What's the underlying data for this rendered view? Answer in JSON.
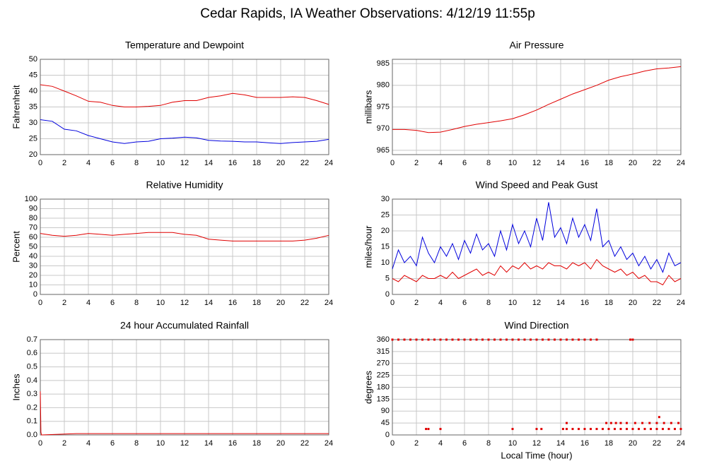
{
  "title": "Cedar Rapids, IA Weather Observations: 4/12/19 11:55p",
  "chart_data": [
    {
      "type": "line",
      "title": "Temperature and Dewpoint",
      "ylabel": "Fahrenheit",
      "x": [
        0,
        1,
        2,
        3,
        4,
        5,
        6,
        7,
        8,
        9,
        10,
        11,
        12,
        13,
        14,
        15,
        16,
        17,
        18,
        19,
        20,
        21,
        22,
        23,
        24
      ],
      "xlim": [
        0,
        24
      ],
      "xticks": [
        0,
        2,
        4,
        6,
        8,
        10,
        12,
        14,
        16,
        18,
        20,
        22,
        24
      ],
      "ylim": [
        20,
        50
      ],
      "yticks": [
        20,
        25,
        30,
        35,
        40,
        45,
        50
      ],
      "grid": true,
      "series": [
        {
          "color": "#e00000",
          "values": [
            42,
            41.5,
            40,
            38.5,
            36.8,
            36.5,
            35.5,
            35,
            35,
            35.2,
            35.5,
            36.5,
            37,
            37,
            38,
            38.5,
            39.3,
            38.8,
            38,
            38,
            38,
            38.2,
            38,
            37,
            35.8
          ]
        },
        {
          "color": "#0000dd",
          "values": [
            31,
            30.5,
            28,
            27.5,
            26,
            25,
            24,
            23.5,
            24,
            24.2,
            25,
            25.2,
            25.5,
            25.3,
            24.5,
            24.3,
            24.2,
            24,
            24,
            23.7,
            23.5,
            23.8,
            24,
            24.2,
            24.8
          ]
        }
      ]
    },
    {
      "type": "line",
      "title": "Air Pressure",
      "ylabel": "millibars",
      "x": [
        0,
        1,
        2,
        3,
        4,
        5,
        6,
        7,
        8,
        9,
        10,
        11,
        12,
        13,
        14,
        15,
        16,
        17,
        18,
        19,
        20,
        21,
        22,
        23,
        24
      ],
      "xlim": [
        0,
        24
      ],
      "xticks": [
        0,
        2,
        4,
        6,
        8,
        10,
        12,
        14,
        16,
        18,
        20,
        22,
        24
      ],
      "ylim": [
        964,
        986
      ],
      "yticks": [
        965,
        970,
        975,
        980,
        985
      ],
      "grid": true,
      "series": [
        {
          "color": "#e00000",
          "values": [
            969.8,
            969.8,
            969.6,
            969.1,
            969.2,
            969.8,
            970.5,
            971,
            971.4,
            971.8,
            972.3,
            973.2,
            974.3,
            975.6,
            976.8,
            978,
            979,
            980,
            981.2,
            982,
            982.6,
            983.3,
            983.8,
            984,
            984.3
          ]
        }
      ]
    },
    {
      "type": "line",
      "title": "Relative Humidity",
      "ylabel": "Percent",
      "x": [
        0,
        1,
        2,
        3,
        4,
        5,
        6,
        7,
        8,
        9,
        10,
        11,
        12,
        13,
        14,
        15,
        16,
        17,
        18,
        19,
        20,
        21,
        22,
        23,
        24
      ],
      "xlim": [
        0,
        24
      ],
      "xticks": [
        0,
        2,
        4,
        6,
        8,
        10,
        12,
        14,
        16,
        18,
        20,
        22,
        24
      ],
      "ylim": [
        0,
        100
      ],
      "yticks": [
        0,
        10,
        20,
        30,
        40,
        50,
        60,
        70,
        80,
        90,
        100
      ],
      "grid": true,
      "series": [
        {
          "color": "#e00000",
          "values": [
            64,
            62,
            61,
            62,
            64,
            63,
            62,
            63,
            64,
            65,
            65,
            65,
            63,
            62,
            58,
            57,
            56,
            56,
            56,
            56,
            56,
            56,
            57,
            59,
            62
          ]
        }
      ]
    },
    {
      "type": "line",
      "title": "Wind Speed and Peak Gust",
      "ylabel": "miles/hour",
      "x": [
        0,
        0.5,
        1,
        1.5,
        2,
        2.5,
        3,
        3.5,
        4,
        4.5,
        5,
        5.5,
        6,
        6.5,
        7,
        7.5,
        8,
        8.5,
        9,
        9.5,
        10,
        10.5,
        11,
        11.5,
        12,
        12.5,
        13,
        13.5,
        14,
        14.5,
        15,
        15.5,
        16,
        16.5,
        17,
        17.5,
        18,
        18.5,
        19,
        19.5,
        20,
        20.5,
        21,
        21.5,
        22,
        22.5,
        23,
        23.5,
        24
      ],
      "xlim": [
        0,
        24
      ],
      "xticks": [
        0,
        2,
        4,
        6,
        8,
        10,
        12,
        14,
        16,
        18,
        20,
        22,
        24
      ],
      "ylim": [
        0,
        30
      ],
      "yticks": [
        0,
        5,
        10,
        15,
        20,
        25,
        30
      ],
      "grid": true,
      "series": [
        {
          "color": "#0000dd",
          "values": [
            8,
            14,
            10,
            12,
            9,
            18,
            13,
            10,
            15,
            12,
            16,
            11,
            17,
            13,
            19,
            14,
            16,
            12,
            20,
            14,
            22,
            16,
            20,
            15,
            24,
            17,
            29,
            18,
            21,
            16,
            24,
            18,
            22,
            17,
            27,
            15,
            17,
            12,
            15,
            11,
            13,
            9,
            12,
            8,
            11,
            7,
            13,
            9,
            10
          ]
        },
        {
          "color": "#e00000",
          "values": [
            5,
            4,
            6,
            5,
            4,
            6,
            5,
            5,
            6,
            5,
            7,
            5,
            6,
            7,
            8,
            6,
            7,
            6,
            9,
            7,
            9,
            8,
            10,
            8,
            9,
            8,
            10,
            9,
            9,
            8,
            10,
            9,
            10,
            8,
            11,
            9,
            8,
            7,
            8,
            6,
            7,
            5,
            6,
            4,
            4,
            3,
            6,
            4,
            5
          ]
        }
      ]
    },
    {
      "type": "line",
      "title": "24 hour Accumulated Rainfall",
      "ylabel": "Inches",
      "x": [
        0,
        0.05,
        0.1,
        3,
        24
      ],
      "xlim": [
        0,
        24
      ],
      "xticks": [
        0,
        2,
        4,
        6,
        8,
        10,
        12,
        14,
        16,
        18,
        20,
        22,
        24
      ],
      "ylim": [
        0,
        0.7
      ],
      "yticks": [
        {
          "value": 0,
          "label": "0.0"
        },
        0.1,
        0.2,
        0.3,
        0.4,
        0.5,
        0.6,
        0.7
      ],
      "grid": true,
      "series": [
        {
          "color": "#e00000",
          "values": [
            0.32,
            0.02,
            0,
            0.01,
            0.01
          ]
        }
      ]
    },
    {
      "type": "scatter",
      "title": "Wind Direction",
      "ylabel": "degrees",
      "xlabel": "Local Time (hour)",
      "xlim": [
        0,
        24
      ],
      "xticks": [
        0,
        2,
        4,
        6,
        8,
        10,
        12,
        14,
        16,
        18,
        20,
        22,
        24
      ],
      "ylim": [
        0,
        360
      ],
      "yticks": [
        0,
        45,
        90,
        135,
        180,
        225,
        270,
        315,
        360
      ],
      "grid": true,
      "color": "#e00000",
      "x": [
        0,
        0.5,
        1,
        1.5,
        2,
        2.5,
        3,
        3.5,
        4,
        4.5,
        5,
        5.5,
        6,
        6.5,
        7,
        7.5,
        8,
        8.5,
        9,
        9.5,
        10,
        10.5,
        11,
        11.5,
        12,
        12.5,
        13,
        13.5,
        14,
        14.5,
        15,
        15.5,
        16,
        16.5,
        17,
        19.8,
        20,
        2.8,
        3,
        4,
        10,
        12,
        12.4,
        14.2,
        14.5,
        15,
        15.5,
        16,
        16.5,
        17,
        17.5,
        18,
        18.5,
        19,
        19.5,
        20,
        20.5,
        21,
        21.5,
        22,
        22.5,
        23,
        23.5,
        24,
        14.5,
        17.8,
        18.2,
        18.6,
        19,
        19.5,
        20.2,
        20.8,
        21.4,
        22,
        22.6,
        23.2,
        23.8,
        22.2
      ],
      "values": [
        360,
        360,
        360,
        360,
        360,
        360,
        360,
        360,
        360,
        360,
        360,
        360,
        360,
        360,
        360,
        360,
        360,
        360,
        360,
        360,
        360,
        360,
        360,
        360,
        360,
        360,
        360,
        360,
        360,
        360,
        360,
        360,
        360,
        360,
        360,
        360,
        360,
        22.5,
        22.5,
        22.5,
        22.5,
        22.5,
        22.5,
        22.5,
        22.5,
        22.5,
        22.5,
        22.5,
        22.5,
        22.5,
        22.5,
        22.5,
        22.5,
        22.5,
        22.5,
        22.5,
        22.5,
        22.5,
        22.5,
        22.5,
        22.5,
        22.5,
        22.5,
        22.5,
        45,
        45,
        45,
        45,
        45,
        45,
        45,
        45,
        45,
        45,
        45,
        45,
        45,
        67.5
      ]
    }
  ]
}
